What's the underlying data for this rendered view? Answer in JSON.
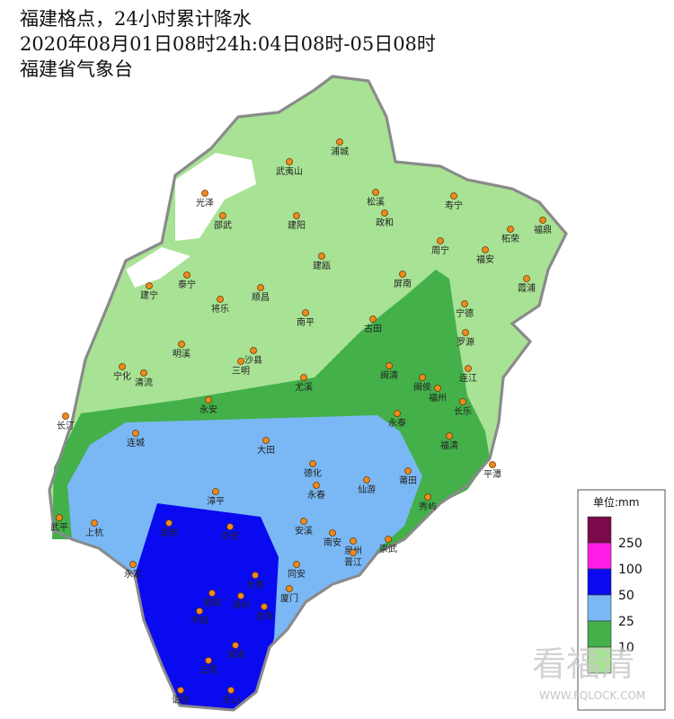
{
  "header": {
    "lines": [
      "福建格点，24小时累计降水",
      "2020年08月01日08时24h:04日08时-05日08时",
      "福建省气象台"
    ]
  },
  "cities": [
    "浦城",
    "武夷山",
    "光泽",
    "松溪",
    "政和",
    "寿宁",
    "福鼎",
    "邵武",
    "建阳",
    "周宁",
    "柘荣",
    "福安",
    "建瓯",
    "霞浦",
    "泰宁",
    "建宁",
    "将乐",
    "顺昌",
    "屏南",
    "宁德",
    "南平",
    "古田",
    "罗源",
    "明溪",
    "沙县",
    "宁化",
    "清流",
    "三明",
    "闽清",
    "闽侯",
    "连江",
    "福州",
    "尤溪",
    "长乐",
    "永安",
    "永泰",
    "长汀",
    "福清",
    "连城",
    "大田",
    "平潭",
    "德化",
    "莆田",
    "永春",
    "仙游",
    "漳平",
    "武平",
    "上杭",
    "龙岩",
    "华安",
    "秀屿",
    "安溪",
    "南安",
    "泉州",
    "崇武",
    "晋江",
    "永定",
    "长泰",
    "同安",
    "南靖",
    "漳州",
    "厦门",
    "龙海",
    "平和",
    "漳浦",
    "云霄",
    "诏安",
    "东山"
  ],
  "legend": {
    "unit": "单位:mm",
    "colors": [
      "#7a0a4a",
      "#ff1ee6",
      "#0a0af0",
      "#7ab8f5",
      "#43b04a",
      "#a8e294"
    ],
    "thresholds": [
      250,
      100,
      50,
      25,
      10
    ]
  },
  "watermark": {
    "brand": "看福清",
    "url": "WWW.FQLOCK.COM"
  }
}
